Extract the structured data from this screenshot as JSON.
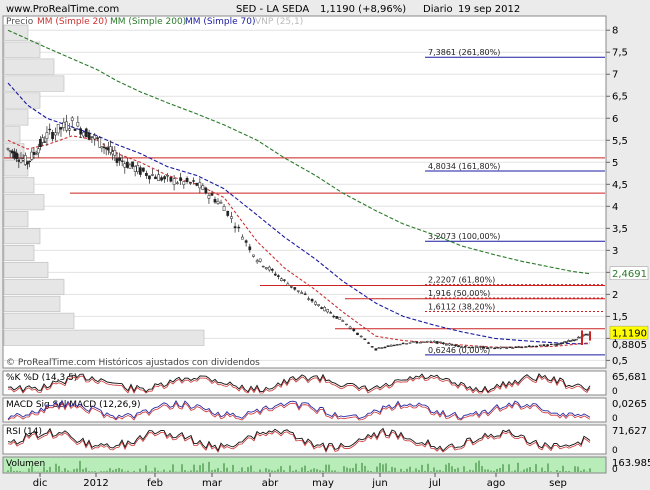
{
  "header": {
    "site": "www.ProRealTime.com",
    "title": "SED - LA SEDA",
    "price": "1,1190 (+8,96%)",
    "period": "Diario",
    "date": "19 sep 2012"
  },
  "legend": {
    "precio": "Precio",
    "mm20": "MM (Simple 20)",
    "mm200": "MM (Simple 200)",
    "mm70": "MM (Simple 70)",
    "vnp": "VNP (25,1)"
  },
  "footer_note": "© ProRealTime.com   Históricos ajustados con dividendos",
  "colors": {
    "mm20": "#cc3333",
    "mm200": "#2a7a2a",
    "mm70": "#1a1aa0",
    "candle": "#222222",
    "fib": "#cc2222",
    "blue_level": "#1a1aa0",
    "volume_bg": "#b8ecb8",
    "price_tag": "#ffff00",
    "panel_bg": "#ffffff"
  },
  "chart_data": {
    "type": "line",
    "title": "SED - LA SEDA",
    "price_axis": {
      "ticks": [
        "8",
        "7,5",
        "7",
        "6,5",
        "6",
        "5,5",
        "5",
        "4,5",
        "4",
        "3,5",
        "3",
        "2,5",
        "2",
        "1,5",
        "1",
        "0,5"
      ],
      "min": 0.5,
      "max": 8,
      "scale": "linear"
    },
    "x_labels": [
      "dic",
      "2012",
      "feb",
      "mar",
      "abr",
      "may",
      "jun",
      "jul",
      "ago",
      "sep"
    ],
    "price_series": {
      "name": "Precio",
      "x": [
        "2011-11-25",
        "2011-12-05",
        "2011-12-15",
        "2011-12-28",
        "2012-01-10",
        "2012-01-20",
        "2012-02-01",
        "2012-02-15",
        "2012-03-01",
        "2012-03-15",
        "2012-04-01",
        "2012-04-15",
        "2012-05-01",
        "2012-05-15",
        "2012-06-01",
        "2012-06-15",
        "2012-07-01",
        "2012-07-15",
        "2012-08-01",
        "2012-08-15",
        "2012-09-01",
        "2012-09-10",
        "2012-09-19"
      ],
      "values": [
        5.3,
        5.0,
        5.6,
        5.9,
        5.5,
        5.1,
        4.8,
        4.6,
        4.5,
        4.0,
        2.8,
        2.3,
        1.8,
        1.4,
        0.75,
        0.9,
        0.92,
        0.82,
        0.78,
        0.8,
        0.86,
        0.95,
        1.119
      ]
    },
    "mm20": [
      5.5,
      5.3,
      5.4,
      5.6,
      5.5,
      5.2,
      5.0,
      4.7,
      4.5,
      4.2,
      3.2,
      2.6,
      2.1,
      1.6,
      1.05,
      0.95,
      0.9,
      0.85,
      0.8,
      0.8,
      0.82,
      0.86,
      0.9
    ],
    "mm70": [
      6.8,
      6.3,
      6.0,
      5.8,
      5.6,
      5.4,
      5.2,
      4.9,
      4.7,
      4.4,
      3.8,
      3.3,
      2.8,
      2.3,
      1.8,
      1.5,
      1.3,
      1.15,
      1.0,
      0.95,
      0.9,
      0.88,
      0.8805
    ],
    "mm200": [
      8.0,
      7.8,
      7.6,
      7.35,
      7.1,
      6.85,
      6.6,
      6.35,
      6.1,
      5.85,
      5.5,
      5.1,
      4.7,
      4.3,
      3.9,
      3.6,
      3.35,
      3.1,
      2.9,
      2.75,
      2.6,
      2.52,
      2.4691
    ],
    "fibonacci": [
      {
        "label": "7,3861 (261,80%)",
        "value": 7.3861
      },
      {
        "label": "4,8034 (161,80%)",
        "value": 4.8034
      },
      {
        "label": "3,2073 (100,00%)",
        "value": 3.2073
      },
      {
        "label": "2,2207 (61,80%)",
        "value": 2.2207
      },
      {
        "label": "1,916 (50,00%)",
        "value": 1.916
      },
      {
        "label": "1,6112 (38,20%)",
        "value": 1.6112
      },
      {
        "label": "0,6246 (0,00%)",
        "value": 0.6246
      }
    ],
    "horizontal_levels": [
      5.1,
      4.3,
      2.2,
      1.9,
      1.22
    ],
    "last_values": {
      "price": "1,1190",
      "mm70": "0,8805",
      "mm200": "2,4691"
    },
    "volume_profile": [
      0.12,
      0.18,
      0.25,
      0.3,
      0.18,
      0.12,
      0.08,
      0.1,
      0.12,
      0.15,
      0.2,
      0.12,
      0.18,
      0.15,
      0.22,
      0.3,
      0.28,
      0.35,
      1.0
    ],
    "indicators": [
      {
        "name": "%K",
        "label": "%K %D (14,3,5)",
        "last": "65,681",
        "ticks": [
          "0"
        ]
      },
      {
        "name": "MACD",
        "label": "MACD Sig Sel MACD (12,26,9)",
        "last": "0,0265",
        "ticks": [
          "0"
        ]
      },
      {
        "name": "RSI",
        "label": "RSI (14)",
        "last": "71,627",
        "ticks": [
          "0"
        ]
      },
      {
        "name": "Volumen",
        "label": "Volumen",
        "last": "163.985",
        "ticks": [
          "0"
        ]
      }
    ]
  }
}
